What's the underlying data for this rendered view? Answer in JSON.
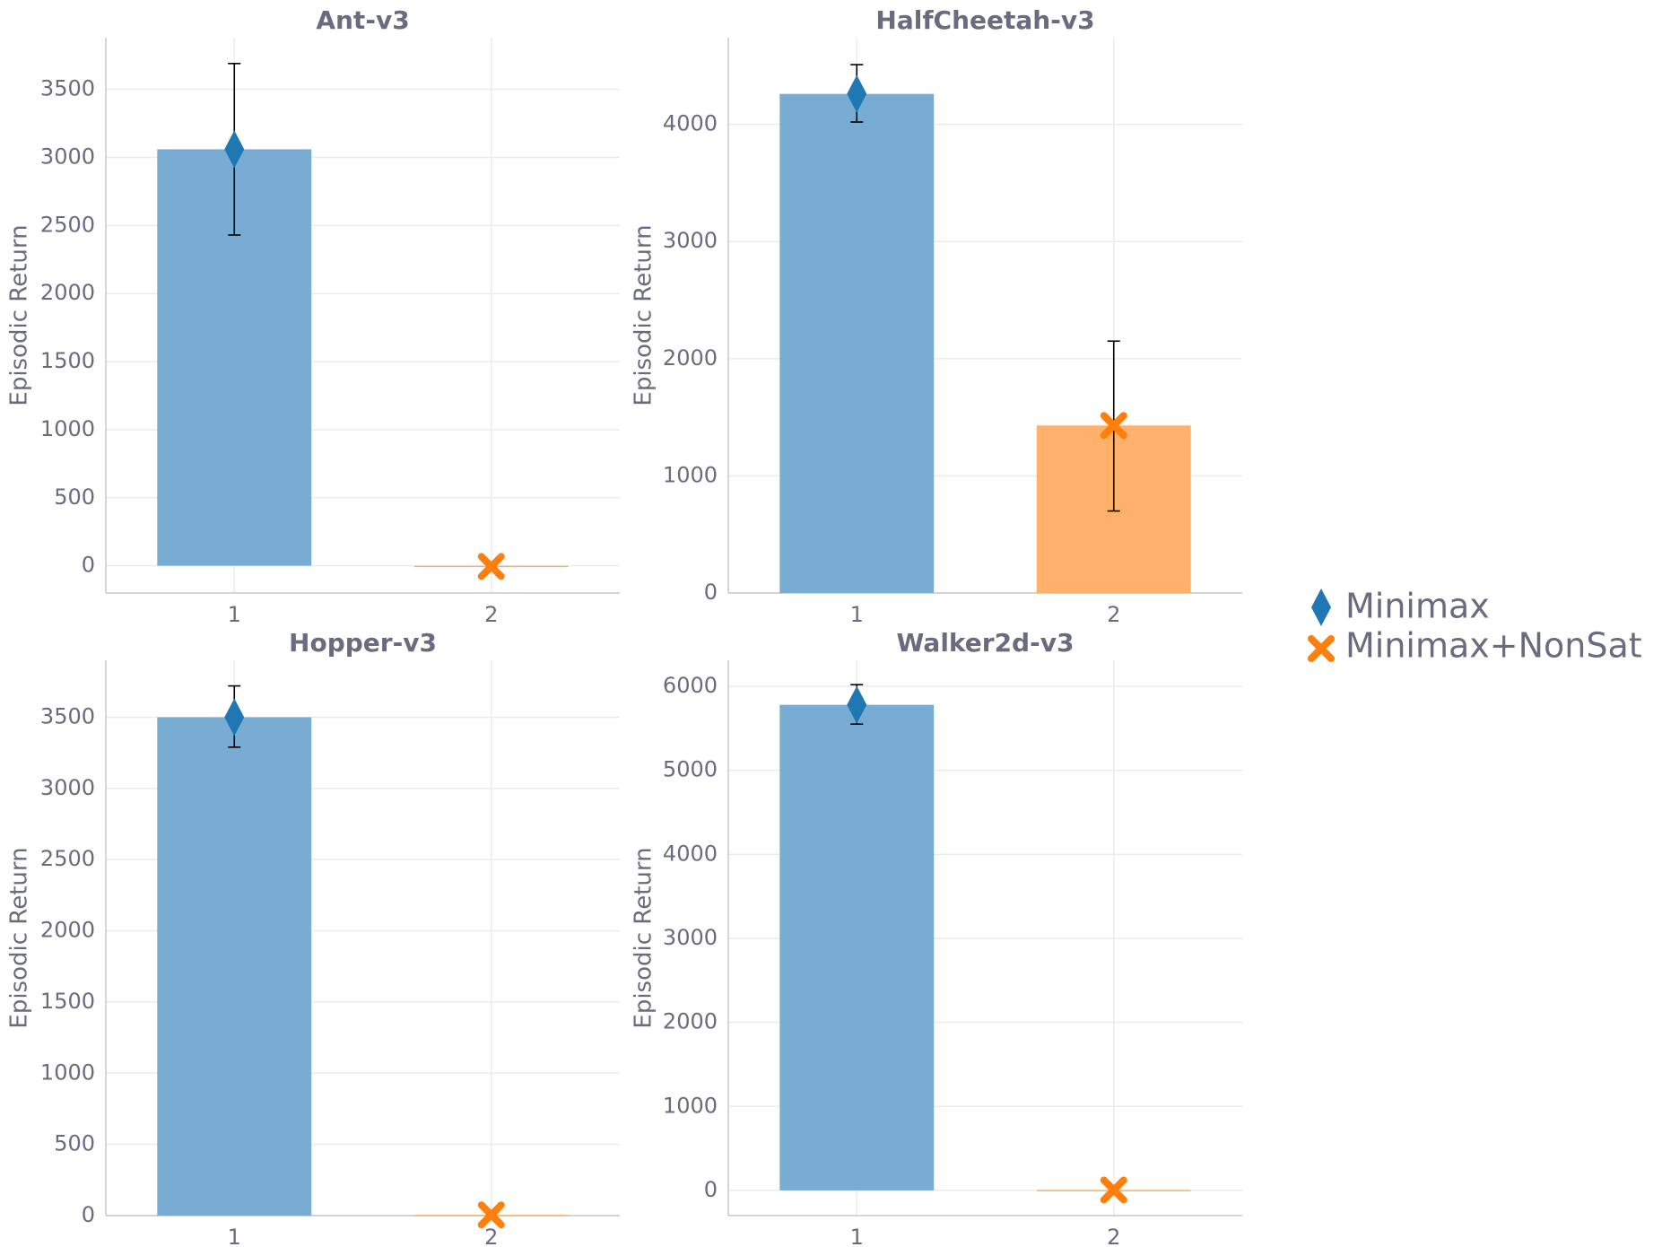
{
  "chart_data": [
    {
      "type": "bar",
      "title": "Ant-v3",
      "categories": [
        "1",
        "2"
      ],
      "series": [
        {
          "name": "Minimax",
          "values": [
            3060,
            null
          ],
          "error": [
            [
              2430,
              3690
            ],
            null
          ]
        },
        {
          "name": "Minimax+NonSat",
          "values": [
            null,
            -5
          ],
          "error": [
            null,
            null
          ]
        }
      ],
      "ylabel": "Episodic Return",
      "yticks": [
        0,
        500,
        1000,
        1500,
        2000,
        2500,
        3000,
        3500
      ],
      "ylim": [
        -200,
        3880
      ]
    },
    {
      "type": "bar",
      "title": "HalfCheetah-v3",
      "categories": [
        "1",
        "2"
      ],
      "series": [
        {
          "name": "Minimax",
          "values": [
            4260,
            null
          ],
          "error": [
            [
              4020,
              4510
            ],
            null
          ]
        },
        {
          "name": "Minimax+NonSat",
          "values": [
            null,
            1430
          ],
          "error": [
            null,
            [
              700,
              2150
            ]
          ]
        }
      ],
      "ylabel": "Episodic Return",
      "yticks": [
        0,
        1000,
        2000,
        3000,
        4000
      ],
      "ylim": [
        0,
        4740
      ]
    },
    {
      "type": "bar",
      "title": "Hopper-v3",
      "categories": [
        "1",
        "2"
      ],
      "series": [
        {
          "name": "Minimax",
          "values": [
            3500,
            null
          ],
          "error": [
            [
              3290,
              3720
            ],
            null
          ]
        },
        {
          "name": "Minimax+NonSat",
          "values": [
            null,
            5
          ],
          "error": [
            null,
            null
          ]
        }
      ],
      "ylabel": "Episodic Return",
      "yticks": [
        0,
        500,
        1000,
        1500,
        2000,
        2500,
        3000,
        3500
      ],
      "ylim": [
        0,
        3900
      ]
    },
    {
      "type": "bar",
      "title": "Walker2d-v3",
      "categories": [
        "1",
        "2"
      ],
      "series": [
        {
          "name": "Minimax",
          "values": [
            5780,
            null
          ],
          "error": [
            [
              5550,
              6020
            ],
            null
          ]
        },
        {
          "name": "Minimax+NonSat",
          "values": [
            null,
            5
          ],
          "error": [
            null,
            null
          ]
        }
      ],
      "ylabel": "Episodic Return",
      "yticks": [
        0,
        1000,
        2000,
        3000,
        4000,
        5000,
        6000
      ],
      "ylim": [
        -300,
        6310
      ]
    }
  ],
  "legend": [
    {
      "label": "Minimax",
      "marker": "diamond",
      "color": "#1f77b4"
    },
    {
      "label": "Minimax+NonSat",
      "marker": "x",
      "color": "#ff7f0e"
    }
  ],
  "colors": {
    "bar1": "#79acd2",
    "bar2": "#ffb06a",
    "marker1": "#1f77b4",
    "marker2": "#ff7f0e",
    "error": "#000000"
  }
}
